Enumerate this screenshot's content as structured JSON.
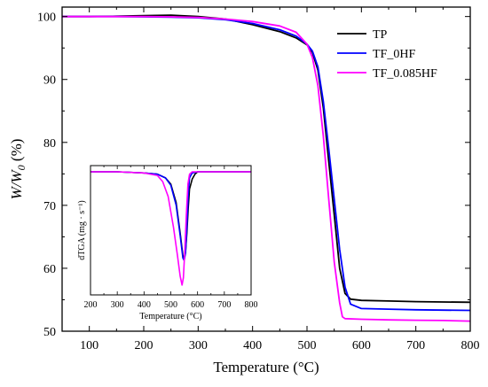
{
  "chart_data": [
    {
      "type": "line",
      "xlabel": "Temperature (°C)",
      "ylabel": "W/W0 (%)",
      "ylabel_parts": {
        "main": "W/W",
        "sub": "0",
        "unit": " (%)"
      },
      "xlim": [
        50,
        800
      ],
      "ylim": [
        50,
        101.5
      ],
      "x_ticks": [
        100,
        200,
        300,
        400,
        500,
        600,
        700,
        800
      ],
      "y_ticks": [
        50,
        60,
        70,
        80,
        90,
        100
      ],
      "grid": false,
      "legend_position": "top-right",
      "series": [
        {
          "name": "TP",
          "color": "#000000",
          "points": [
            [
              50,
              100.0
            ],
            [
              100,
              100.0
            ],
            [
              150,
              100.05
            ],
            [
              200,
              100.15
            ],
            [
              250,
              100.2
            ],
            [
              300,
              100.0
            ],
            [
              350,
              99.6
            ],
            [
              400,
              98.7
            ],
            [
              450,
              97.6
            ],
            [
              480,
              96.6
            ],
            [
              500,
              95.5
            ],
            [
              510,
              94.3
            ],
            [
              520,
              91.5
            ],
            [
              530,
              85.5
            ],
            [
              540,
              77.0
            ],
            [
              550,
              68.5
            ],
            [
              560,
              60.0
            ],
            [
              570,
              56.0
            ],
            [
              580,
              55.1
            ],
            [
              600,
              54.9
            ],
            [
              650,
              54.8
            ],
            [
              700,
              54.7
            ],
            [
              750,
              54.65
            ],
            [
              800,
              54.6
            ]
          ]
        },
        {
          "name": "TF_0HF",
          "color": "#0000ff",
          "points": [
            [
              50,
              100.0
            ],
            [
              100,
              100.0
            ],
            [
              150,
              100.0
            ],
            [
              200,
              99.95
            ],
            [
              250,
              99.9
            ],
            [
              300,
              99.8
            ],
            [
              350,
              99.5
            ],
            [
              400,
              98.9
            ],
            [
              450,
              97.9
            ],
            [
              480,
              96.9
            ],
            [
              500,
              95.6
            ],
            [
              510,
              94.5
            ],
            [
              520,
              92.0
            ],
            [
              530,
              86.5
            ],
            [
              540,
              79.0
            ],
            [
              550,
              71.0
            ],
            [
              560,
              63.0
            ],
            [
              570,
              57.0
            ],
            [
              580,
              54.3
            ],
            [
              600,
              53.6
            ],
            [
              650,
              53.5
            ],
            [
              700,
              53.4
            ],
            [
              750,
              53.35
            ],
            [
              800,
              53.3
            ]
          ]
        },
        {
          "name": "TF_0.085HF",
          "color": "#ff00ff",
          "points": [
            [
              50,
              100.0
            ],
            [
              100,
              100.0
            ],
            [
              150,
              100.0
            ],
            [
              200,
              100.0
            ],
            [
              250,
              99.95
            ],
            [
              300,
              99.85
            ],
            [
              350,
              99.6
            ],
            [
              400,
              99.2
            ],
            [
              450,
              98.5
            ],
            [
              480,
              97.5
            ],
            [
              500,
              95.6
            ],
            [
              510,
              93.5
            ],
            [
              520,
              89.0
            ],
            [
              530,
              81.0
            ],
            [
              540,
              71.0
            ],
            [
              550,
              61.0
            ],
            [
              560,
              54.5
            ],
            [
              565,
              52.3
            ],
            [
              570,
              52.0
            ],
            [
              600,
              51.9
            ],
            [
              650,
              51.8
            ],
            [
              700,
              51.75
            ],
            [
              750,
              51.7
            ],
            [
              800,
              51.6
            ]
          ]
        }
      ]
    },
    {
      "type": "line",
      "title": "",
      "xlabel": "Temperature (°C)",
      "ylabel": "dTGA (mg · s⁻¹)",
      "xlim": [
        200,
        800
      ],
      "x_ticks": [
        200,
        300,
        400,
        500,
        600,
        700,
        800
      ],
      "ylim": [
        -1.0,
        0.05
      ],
      "y_ticks": [],
      "series": [
        {
          "name": "TP",
          "color": "#000000",
          "points": [
            [
              200,
              0.0
            ],
            [
              300,
              0.0
            ],
            [
              400,
              -0.01
            ],
            [
              450,
              -0.02
            ],
            [
              480,
              -0.05
            ],
            [
              500,
              -0.1
            ],
            [
              520,
              -0.25
            ],
            [
              535,
              -0.5
            ],
            [
              545,
              -0.68
            ],
            [
              550,
              -0.7
            ],
            [
              555,
              -0.65
            ],
            [
              560,
              -0.5
            ],
            [
              565,
              -0.3
            ],
            [
              570,
              -0.14
            ],
            [
              580,
              -0.06
            ],
            [
              590,
              -0.02
            ],
            [
              600,
              0.0
            ],
            [
              700,
              0.0
            ],
            [
              800,
              0.0
            ]
          ]
        },
        {
          "name": "TF_0HF",
          "color": "#0000ff",
          "points": [
            [
              200,
              0.0
            ],
            [
              300,
              0.0
            ],
            [
              400,
              -0.01
            ],
            [
              450,
              -0.02
            ],
            [
              480,
              -0.05
            ],
            [
              500,
              -0.11
            ],
            [
              520,
              -0.27
            ],
            [
              535,
              -0.52
            ],
            [
              545,
              -0.7
            ],
            [
              550,
              -0.72
            ],
            [
              555,
              -0.66
            ],
            [
              560,
              -0.45
            ],
            [
              565,
              -0.2
            ],
            [
              570,
              -0.05
            ],
            [
              580,
              -0.01
            ],
            [
              600,
              0.0
            ],
            [
              700,
              0.0
            ],
            [
              800,
              0.0
            ]
          ]
        },
        {
          "name": "TF_0.085HF",
          "color": "#ff00ff",
          "points": [
            [
              200,
              0.0
            ],
            [
              300,
              0.0
            ],
            [
              400,
              -0.01
            ],
            [
              450,
              -0.03
            ],
            [
              470,
              -0.08
            ],
            [
              490,
              -0.2
            ],
            [
              510,
              -0.45
            ],
            [
              525,
              -0.68
            ],
            [
              535,
              -0.85
            ],
            [
              542,
              -0.92
            ],
            [
              547,
              -0.86
            ],
            [
              552,
              -0.65
            ],
            [
              558,
              -0.35
            ],
            [
              564,
              -0.1
            ],
            [
              570,
              -0.02
            ],
            [
              580,
              0.0
            ],
            [
              700,
              0.0
            ],
            [
              800,
              0.0
            ]
          ]
        }
      ]
    }
  ]
}
